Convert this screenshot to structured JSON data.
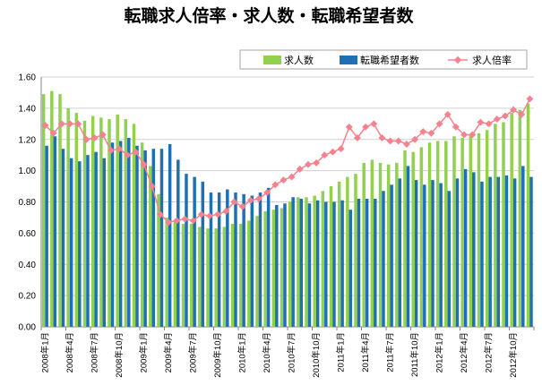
{
  "chart_data": {
    "type": "bar",
    "title": "転職求人倍率・求人数・転職希望者数",
    "legend_position": "top-right",
    "ylim": [
      0,
      1.6
    ],
    "yticks": [
      "0.00",
      "0.20",
      "0.40",
      "0.60",
      "0.80",
      "1.00",
      "1.20",
      "1.40",
      "1.60"
    ],
    "grid": true,
    "x_tick_labels": [
      "2008年1月",
      "2008年4月",
      "2008年7月",
      "2008年10月",
      "2009年1月",
      "2009年4月",
      "2009年7月",
      "2009年10月",
      "2010年1月",
      "2010年4月",
      "2010年7月",
      "2010年10月",
      "2011年1月",
      "2011年4月",
      "2011年7月",
      "2011年10月",
      "2012年1月",
      "2012年4月",
      "2012年7月",
      "2012年10月"
    ],
    "x_tick_every": 3,
    "categories_count": 60,
    "series": [
      {
        "name": "求人数",
        "kind": "bar",
        "color": "#92d050",
        "values": [
          1.49,
          1.51,
          1.49,
          1.4,
          1.37,
          1.32,
          1.35,
          1.34,
          1.33,
          1.36,
          1.33,
          1.3,
          1.18,
          1.03,
          0.85,
          0.7,
          0.68,
          0.66,
          0.66,
          0.64,
          0.63,
          0.63,
          0.64,
          0.66,
          0.66,
          0.68,
          0.71,
          0.74,
          0.75,
          0.76,
          0.8,
          0.83,
          0.83,
          0.84,
          0.87,
          0.9,
          0.93,
          0.96,
          0.98,
          1.05,
          1.07,
          1.05,
          1.04,
          1.05,
          1.13,
          1.12,
          1.15,
          1.18,
          1.19,
          1.19,
          1.22,
          1.21,
          1.23,
          1.24,
          1.26,
          1.3,
          1.31,
          1.37,
          1.39,
          1.43
        ]
      },
      {
        "name": "転職希望者数",
        "kind": "bar",
        "color": "#1f6fb5",
        "values": [
          1.16,
          1.22,
          1.14,
          1.08,
          1.06,
          1.1,
          1.12,
          1.08,
          1.18,
          1.19,
          1.21,
          1.16,
          1.13,
          1.14,
          1.14,
          1.17,
          1.07,
          0.98,
          0.96,
          0.93,
          0.86,
          0.86,
          0.88,
          0.86,
          0.85,
          0.84,
          0.86,
          0.89,
          0.78,
          0.79,
          0.83,
          0.82,
          0.79,
          0.81,
          0.8,
          0.8,
          0.81,
          0.75,
          0.82,
          0.82,
          0.82,
          0.87,
          0.91,
          0.95,
          1.03,
          0.94,
          0.91,
          0.94,
          0.92,
          0.87,
          0.95,
          1.01,
          0.99,
          0.93,
          0.96,
          0.96,
          0.97,
          0.95,
          1.03,
          0.96
        ]
      },
      {
        "name": "求人倍率",
        "kind": "line",
        "color": "#f4828f",
        "values": [
          1.29,
          1.24,
          1.3,
          1.3,
          1.3,
          1.2,
          1.21,
          1.23,
          1.13,
          1.14,
          1.1,
          1.12,
          1.04,
          0.9,
          0.72,
          0.67,
          0.68,
          0.69,
          0.68,
          0.72,
          0.71,
          0.72,
          0.74,
          0.8,
          0.77,
          0.81,
          0.82,
          0.86,
          0.91,
          0.94,
          0.96,
          1.01,
          1.04,
          1.05,
          1.1,
          1.12,
          1.14,
          1.28,
          1.21,
          1.28,
          1.3,
          1.21,
          1.19,
          1.19,
          1.17,
          1.2,
          1.25,
          1.24,
          1.3,
          1.36,
          1.28,
          1.23,
          1.23,
          1.31,
          1.3,
          1.33,
          1.35,
          1.39,
          1.36,
          1.46
        ]
      }
    ]
  }
}
